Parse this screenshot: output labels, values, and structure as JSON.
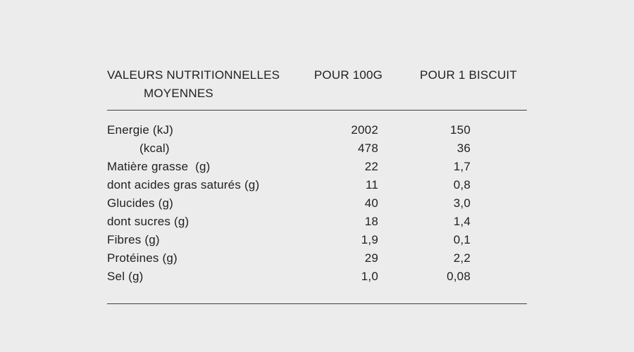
{
  "colors": {
    "background": "#ececec",
    "text": "#212121",
    "rule": "#3f3f3f"
  },
  "table": {
    "header": {
      "col1_line1": "VALEURS NUTRITIONNELLES",
      "col1_line2": "MOYENNES",
      "col2": "POUR 100G",
      "col3": "POUR 1 BISCUIT"
    },
    "rows": [
      {
        "label": "Energie (kJ)",
        "per_100g": "2002",
        "per_biscuit": "150"
      },
      {
        "label": "(kcal)",
        "per_100g": "478",
        "per_biscuit": "36"
      },
      {
        "label": "Matière grasse  (g)",
        "per_100g": "22",
        "per_biscuit": "1,7"
      },
      {
        "label": "dont acides gras saturés (g)",
        "per_100g": "11",
        "per_biscuit": "0,8"
      },
      {
        "label": "Glucides (g)",
        "per_100g": "40",
        "per_biscuit": "3,0"
      },
      {
        "label": "dont sucres (g)",
        "per_100g": "18",
        "per_biscuit": "1,4"
      },
      {
        "label": "Fibres (g)",
        "per_100g": "1,9",
        "per_biscuit": "0,1"
      },
      {
        "label": "Protéines (g)",
        "per_100g": "29",
        "per_biscuit": "2,2"
      },
      {
        "label": "Sel (g)",
        "per_100g": "1,0",
        "per_biscuit": "0,08"
      }
    ]
  }
}
